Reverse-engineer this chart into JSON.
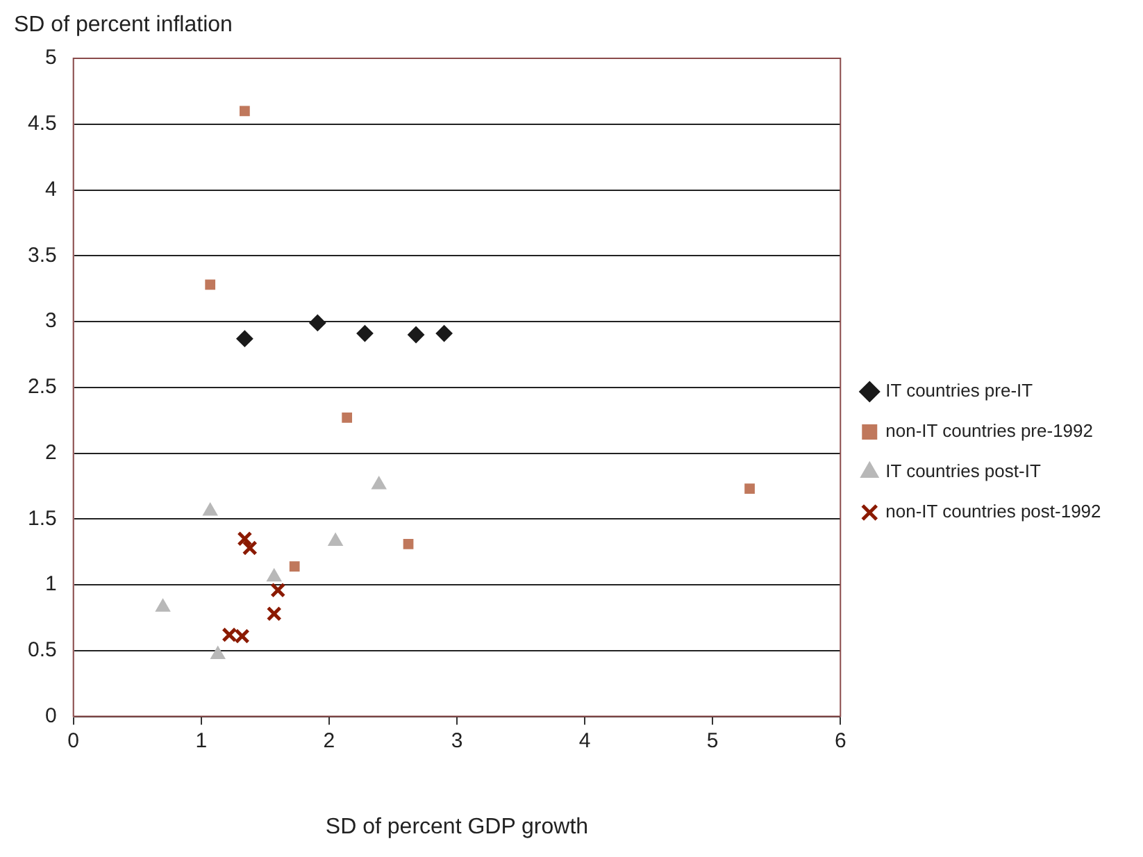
{
  "chart_data": {
    "type": "scatter",
    "xlabel": "SD of percent GDP growth",
    "ylabel": "SD of percent inflation",
    "xlim": [
      0,
      6
    ],
    "xticks": [
      0,
      1,
      2,
      3,
      4,
      5,
      6
    ],
    "ylim": [
      0,
      5
    ],
    "yticks": [
      0,
      0.5,
      1,
      1.5,
      2,
      2.5,
      3,
      3.5,
      4,
      4.5,
      5
    ],
    "grid": "y",
    "legend": "right",
    "series": [
      {
        "name": "IT countries pre-IT",
        "color": "#1a1a1a",
        "marker": "diamond",
        "x": [
          1.34,
          1.91,
          2.28,
          2.68,
          2.9
        ],
        "values": [
          2.87,
          2.99,
          2.91,
          2.9,
          2.91
        ]
      },
      {
        "name": "non-IT countries pre-1992",
        "color": "#c0785c",
        "marker": "square",
        "x": [
          1.34,
          1.07,
          2.14,
          1.73,
          2.62,
          5.29
        ],
        "values": [
          4.6,
          3.28,
          2.27,
          1.14,
          1.31,
          1.73
        ]
      },
      {
        "name": "IT countries post-IT",
        "color": "#b8b8b8",
        "marker": "triangle",
        "x": [
          0.7,
          1.07,
          1.13,
          1.57,
          2.05,
          2.39
        ],
        "values": [
          0.83,
          1.56,
          0.47,
          1.06,
          1.33,
          1.76
        ]
      },
      {
        "name": "non-IT countries post-1992",
        "color": "#8b1a00",
        "marker": "cross",
        "x": [
          1.34,
          1.38,
          1.6,
          1.57,
          1.22,
          1.32
        ],
        "values": [
          1.35,
          1.28,
          0.96,
          0.78,
          0.62,
          0.61
        ]
      }
    ]
  }
}
